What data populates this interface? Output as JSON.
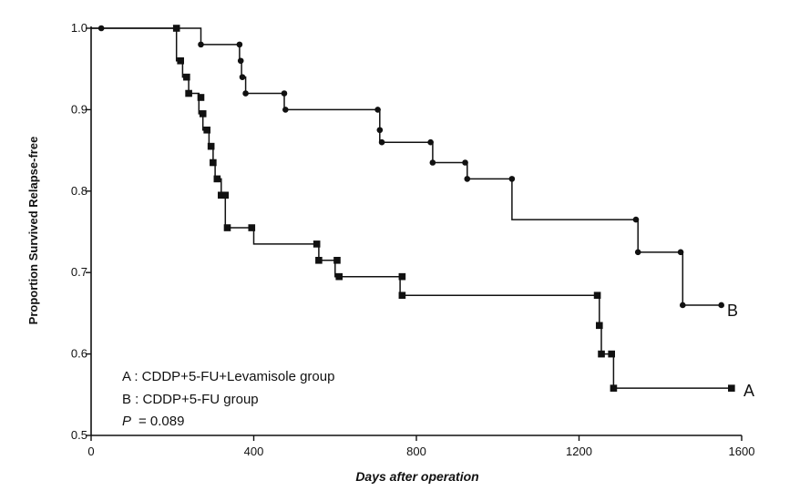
{
  "chart_data": {
    "type": "line",
    "title": "",
    "xlabel": "Days after operation",
    "ylabel": "Proportion Survived Relapse-free",
    "xlim": [
      0,
      1600
    ],
    "ylim": [
      0.5,
      1.0
    ],
    "x_ticks": [
      "0",
      "400",
      "800",
      "1200",
      "1600"
    ],
    "y_ticks": [
      "0.5",
      "0.6",
      "0.7",
      "0.8",
      "0.9",
      "1.0"
    ],
    "grid": false,
    "legend": "bottom-left",
    "annotations": {
      "legend_a": "A : CDDP+5-FU+Levamisole group",
      "legend_b": "B : CDDP+5-FU group",
      "p_label": "P",
      "p_value": "= 0.089"
    },
    "series": [
      {
        "name": "A",
        "marker": "square",
        "steps": [
          [
            0,
            1.0
          ],
          [
            210,
            0.96
          ],
          [
            225,
            0.94
          ],
          [
            240,
            0.92
          ],
          [
            265,
            0.895
          ],
          [
            275,
            0.875
          ],
          [
            290,
            0.855
          ],
          [
            300,
            0.835
          ],
          [
            305,
            0.815
          ],
          [
            320,
            0.795
          ],
          [
            330,
            0.755
          ],
          [
            400,
            0.735
          ],
          [
            560,
            0.715
          ],
          [
            600,
            0.695
          ],
          [
            760,
            0.672
          ],
          [
            1250,
            0.635
          ],
          [
            1255,
            0.6
          ],
          [
            1285,
            0.558
          ],
          [
            1575,
            0.558
          ]
        ],
        "markers": [
          [
            210,
            1.0
          ],
          [
            220,
            0.96
          ],
          [
            235,
            0.94
          ],
          [
            240,
            0.92
          ],
          [
            270,
            0.915
          ],
          [
            275,
            0.895
          ],
          [
            285,
            0.875
          ],
          [
            295,
            0.855
          ],
          [
            300,
            0.835
          ],
          [
            310,
            0.815
          ],
          [
            320,
            0.795
          ],
          [
            330,
            0.795
          ],
          [
            335,
            0.755
          ],
          [
            395,
            0.755
          ],
          [
            555,
            0.735
          ],
          [
            560,
            0.715
          ],
          [
            605,
            0.715
          ],
          [
            610,
            0.695
          ],
          [
            765,
            0.695
          ],
          [
            765,
            0.672
          ],
          [
            1245,
            0.672
          ],
          [
            1250,
            0.635
          ],
          [
            1255,
            0.6
          ],
          [
            1280,
            0.6
          ],
          [
            1285,
            0.558
          ],
          [
            1575,
            0.558
          ]
        ]
      },
      {
        "name": "B",
        "marker": "diamond",
        "steps": [
          [
            0,
            1.0
          ],
          [
            270,
            0.98
          ],
          [
            365,
            0.96
          ],
          [
            370,
            0.94
          ],
          [
            380,
            0.92
          ],
          [
            475,
            0.9
          ],
          [
            710,
            0.86
          ],
          [
            840,
            0.835
          ],
          [
            925,
            0.815
          ],
          [
            1035,
            0.765
          ],
          [
            1345,
            0.725
          ],
          [
            1455,
            0.66
          ],
          [
            1550,
            0.66
          ]
        ],
        "markers": [
          [
            25,
            1.0
          ],
          [
            270,
            0.98
          ],
          [
            365,
            0.98
          ],
          [
            368,
            0.96
          ],
          [
            372,
            0.94
          ],
          [
            380,
            0.92
          ],
          [
            475,
            0.92
          ],
          [
            478,
            0.9
          ],
          [
            705,
            0.9
          ],
          [
            710,
            0.875
          ],
          [
            715,
            0.86
          ],
          [
            835,
            0.86
          ],
          [
            840,
            0.835
          ],
          [
            920,
            0.835
          ],
          [
            925,
            0.815
          ],
          [
            1035,
            0.815
          ],
          [
            1340,
            0.765
          ],
          [
            1345,
            0.725
          ],
          [
            1450,
            0.725
          ],
          [
            1455,
            0.66
          ],
          [
            1550,
            0.66
          ]
        ]
      }
    ]
  }
}
